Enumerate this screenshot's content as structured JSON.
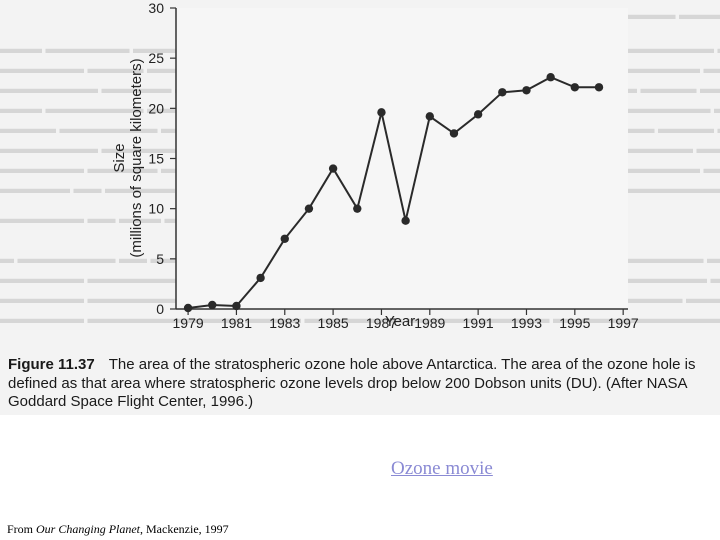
{
  "chart_data": {
    "type": "line",
    "title": "",
    "xlabel": "Year",
    "ylabel": "Size",
    "ylabel_sub": "(millions of square kilometers)",
    "x": [
      1979,
      1980,
      1981,
      1982,
      1983,
      1984,
      1985,
      1986,
      1987,
      1988,
      1989,
      1990,
      1991,
      1992,
      1993,
      1994,
      1995,
      1996
    ],
    "series": [
      {
        "values": [
          0.1,
          0.4,
          0.3,
          3.1,
          7.0,
          10.0,
          14.0,
          10.0,
          19.6,
          8.8,
          19.2,
          17.5,
          19.4,
          21.6,
          21.8,
          23.1,
          22.1,
          22.1
        ]
      }
    ],
    "xlim": [
      1978.5,
      1997.2
    ],
    "ylim": [
      0,
      30
    ],
    "xticks": [
      "1979",
      "1981",
      "1983",
      "1985",
      "1987",
      "1989",
      "1991",
      "1993",
      "1995",
      "1997"
    ],
    "yticks": [
      "0",
      "5",
      "10",
      "15",
      "20",
      "25",
      "30"
    ],
    "grid": false,
    "marker": "filled-circle",
    "color": "#2a2a2a"
  },
  "caption": {
    "figure_label": "Figure 11.37",
    "text": "The area of the stratospheric ozone hole above Antarctica. The area of the ozone hole is defined as that area where stratospheric ozone levels drop below 200 Dobson units (DU). (After NASA Goddard Space Flight Center, 1996.)"
  },
  "link": {
    "label": "Ozone movie",
    "color": "#8a8ad4"
  },
  "source": {
    "prefix": "From ",
    "title": "Our Changing Planet",
    "suffix": ", Mackenzie, 1997"
  }
}
